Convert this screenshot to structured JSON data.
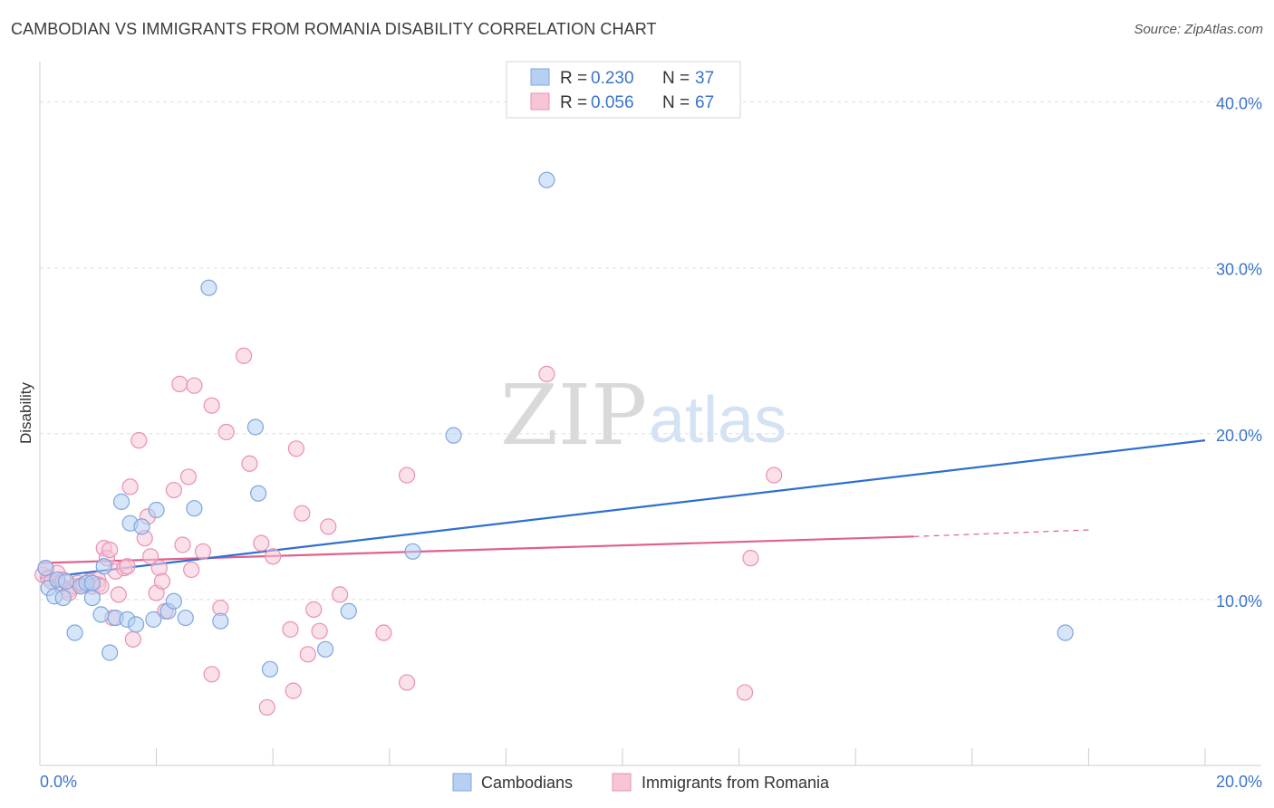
{
  "title": "CAMBODIAN VS IMMIGRANTS FROM ROMANIA DISABILITY CORRELATION CHART",
  "source": "Source: ZipAtlas.com",
  "watermark": {
    "zip": "ZIP",
    "atlas": "atlas"
  },
  "colors": {
    "blue": "#7ba7e0",
    "blue_fill": "#b7d0f2",
    "blue_line": "#2f6fd0",
    "pink": "#ec8fb0",
    "pink_fill": "#f6c6d8",
    "pink_line": "#e0608e",
    "grid": "#dddddd",
    "tick_text": "#3a74c9"
  },
  "legend": {
    "rows": [
      {
        "r_label": "R =",
        "r_value": "0.230",
        "n_label": "N =",
        "n_value": "37"
      },
      {
        "r_label": "R =",
        "r_value": "0.056",
        "n_label": "N =",
        "n_value": "67"
      }
    ]
  },
  "bottom_legend": [
    "Cambodians",
    "Immigrants from Romania"
  ],
  "chart_data": {
    "type": "scatter",
    "title": "CAMBODIAN VS IMMIGRANTS FROM ROMANIA DISABILITY CORRELATION CHART",
    "xlabel": "",
    "ylabel": "Disability",
    "xlim": [
      0,
      20
    ],
    "ylim": [
      0,
      42
    ],
    "x_tick_labels": [
      "0.0%",
      "20.0%"
    ],
    "y_ticks": [
      10,
      20,
      30,
      40
    ],
    "y_tick_labels": [
      "10.0%",
      "20.0%",
      "30.0%",
      "40.0%"
    ],
    "grid": true,
    "legend_position": "top-center",
    "series": [
      {
        "name": "Cambodians",
        "R": 0.23,
        "N": 37,
        "trend": {
          "x": [
            0,
            20
          ],
          "y": [
            11.3,
            19.6
          ]
        },
        "points": [
          [
            0.1,
            11.9
          ],
          [
            0.15,
            10.7
          ],
          [
            0.25,
            10.2
          ],
          [
            0.3,
            11.2
          ],
          [
            0.4,
            10.1
          ],
          [
            0.45,
            11.1
          ],
          [
            0.6,
            8.0
          ],
          [
            0.7,
            10.8
          ],
          [
            0.8,
            11.0
          ],
          [
            0.9,
            10.1
          ],
          [
            0.9,
            11.0
          ],
          [
            1.05,
            9.1
          ],
          [
            1.1,
            12.0
          ],
          [
            1.2,
            6.8
          ],
          [
            1.3,
            8.9
          ],
          [
            1.4,
            15.9
          ],
          [
            1.5,
            8.8
          ],
          [
            1.55,
            14.6
          ],
          [
            1.65,
            8.5
          ],
          [
            1.75,
            14.4
          ],
          [
            1.95,
            8.8
          ],
          [
            2.0,
            15.4
          ],
          [
            2.2,
            9.3
          ],
          [
            2.3,
            9.9
          ],
          [
            2.5,
            8.9
          ],
          [
            2.65,
            15.5
          ],
          [
            2.9,
            28.8
          ],
          [
            3.1,
            8.7
          ],
          [
            3.7,
            20.4
          ],
          [
            3.75,
            16.4
          ],
          [
            3.95,
            5.8
          ],
          [
            4.9,
            7.0
          ],
          [
            5.3,
            9.3
          ],
          [
            6.4,
            12.9
          ],
          [
            7.1,
            19.9
          ],
          [
            8.7,
            35.3
          ],
          [
            17.6,
            8.0
          ]
        ]
      },
      {
        "name": "Immigrants from Romania",
        "R": 0.056,
        "N": 67,
        "trend": {
          "x": [
            0,
            15
          ],
          "y": [
            12.2,
            13.8
          ]
        },
        "trend_dashed": {
          "x": [
            15,
            18
          ],
          "y": [
            13.8,
            14.2
          ]
        },
        "points": [
          [
            0.05,
            11.5
          ],
          [
            0.1,
            11.9
          ],
          [
            0.15,
            11.3
          ],
          [
            0.2,
            11.1
          ],
          [
            0.3,
            11.6
          ],
          [
            0.35,
            10.9
          ],
          [
            0.4,
            11.2
          ],
          [
            0.5,
            10.6
          ],
          [
            0.6,
            10.8
          ],
          [
            0.65,
            11.0
          ],
          [
            0.75,
            10.9
          ],
          [
            0.85,
            11.1
          ],
          [
            0.9,
            10.8
          ],
          [
            1.0,
            11.2
          ],
          [
            1.0,
            10.9
          ],
          [
            1.1,
            13.1
          ],
          [
            1.15,
            12.5
          ],
          [
            1.2,
            13.0
          ],
          [
            1.25,
            8.9
          ],
          [
            1.3,
            11.7
          ],
          [
            1.35,
            10.3
          ],
          [
            1.45,
            11.9
          ],
          [
            1.5,
            12.0
          ],
          [
            1.55,
            16.8
          ],
          [
            1.6,
            7.6
          ],
          [
            1.7,
            19.6
          ],
          [
            1.8,
            13.7
          ],
          [
            1.85,
            15.0
          ],
          [
            1.9,
            12.6
          ],
          [
            2.0,
            10.4
          ],
          [
            2.05,
            11.9
          ],
          [
            2.1,
            11.1
          ],
          [
            2.15,
            9.3
          ],
          [
            2.3,
            16.6
          ],
          [
            2.4,
            23.0
          ],
          [
            2.45,
            13.3
          ],
          [
            2.55,
            17.4
          ],
          [
            2.6,
            11.8
          ],
          [
            2.65,
            22.9
          ],
          [
            2.8,
            12.9
          ],
          [
            2.95,
            5.5
          ],
          [
            2.95,
            21.7
          ],
          [
            3.1,
            9.5
          ],
          [
            3.2,
            20.1
          ],
          [
            3.5,
            24.7
          ],
          [
            3.6,
            18.2
          ],
          [
            3.8,
            13.4
          ],
          [
            3.9,
            3.5
          ],
          [
            4.0,
            12.6
          ],
          [
            4.3,
            8.2
          ],
          [
            4.35,
            4.5
          ],
          [
            4.4,
            19.1
          ],
          [
            4.5,
            15.2
          ],
          [
            4.6,
            6.7
          ],
          [
            4.7,
            9.4
          ],
          [
            4.8,
            8.1
          ],
          [
            4.95,
            14.4
          ],
          [
            5.15,
            10.3
          ],
          [
            5.9,
            8.0
          ],
          [
            6.3,
            5.0
          ],
          [
            6.3,
            17.5
          ],
          [
            8.7,
            23.6
          ],
          [
            12.1,
            4.4
          ],
          [
            12.2,
            12.5
          ],
          [
            12.6,
            17.5
          ],
          [
            0.5,
            10.4
          ],
          [
            1.05,
            10.8
          ]
        ]
      }
    ]
  }
}
